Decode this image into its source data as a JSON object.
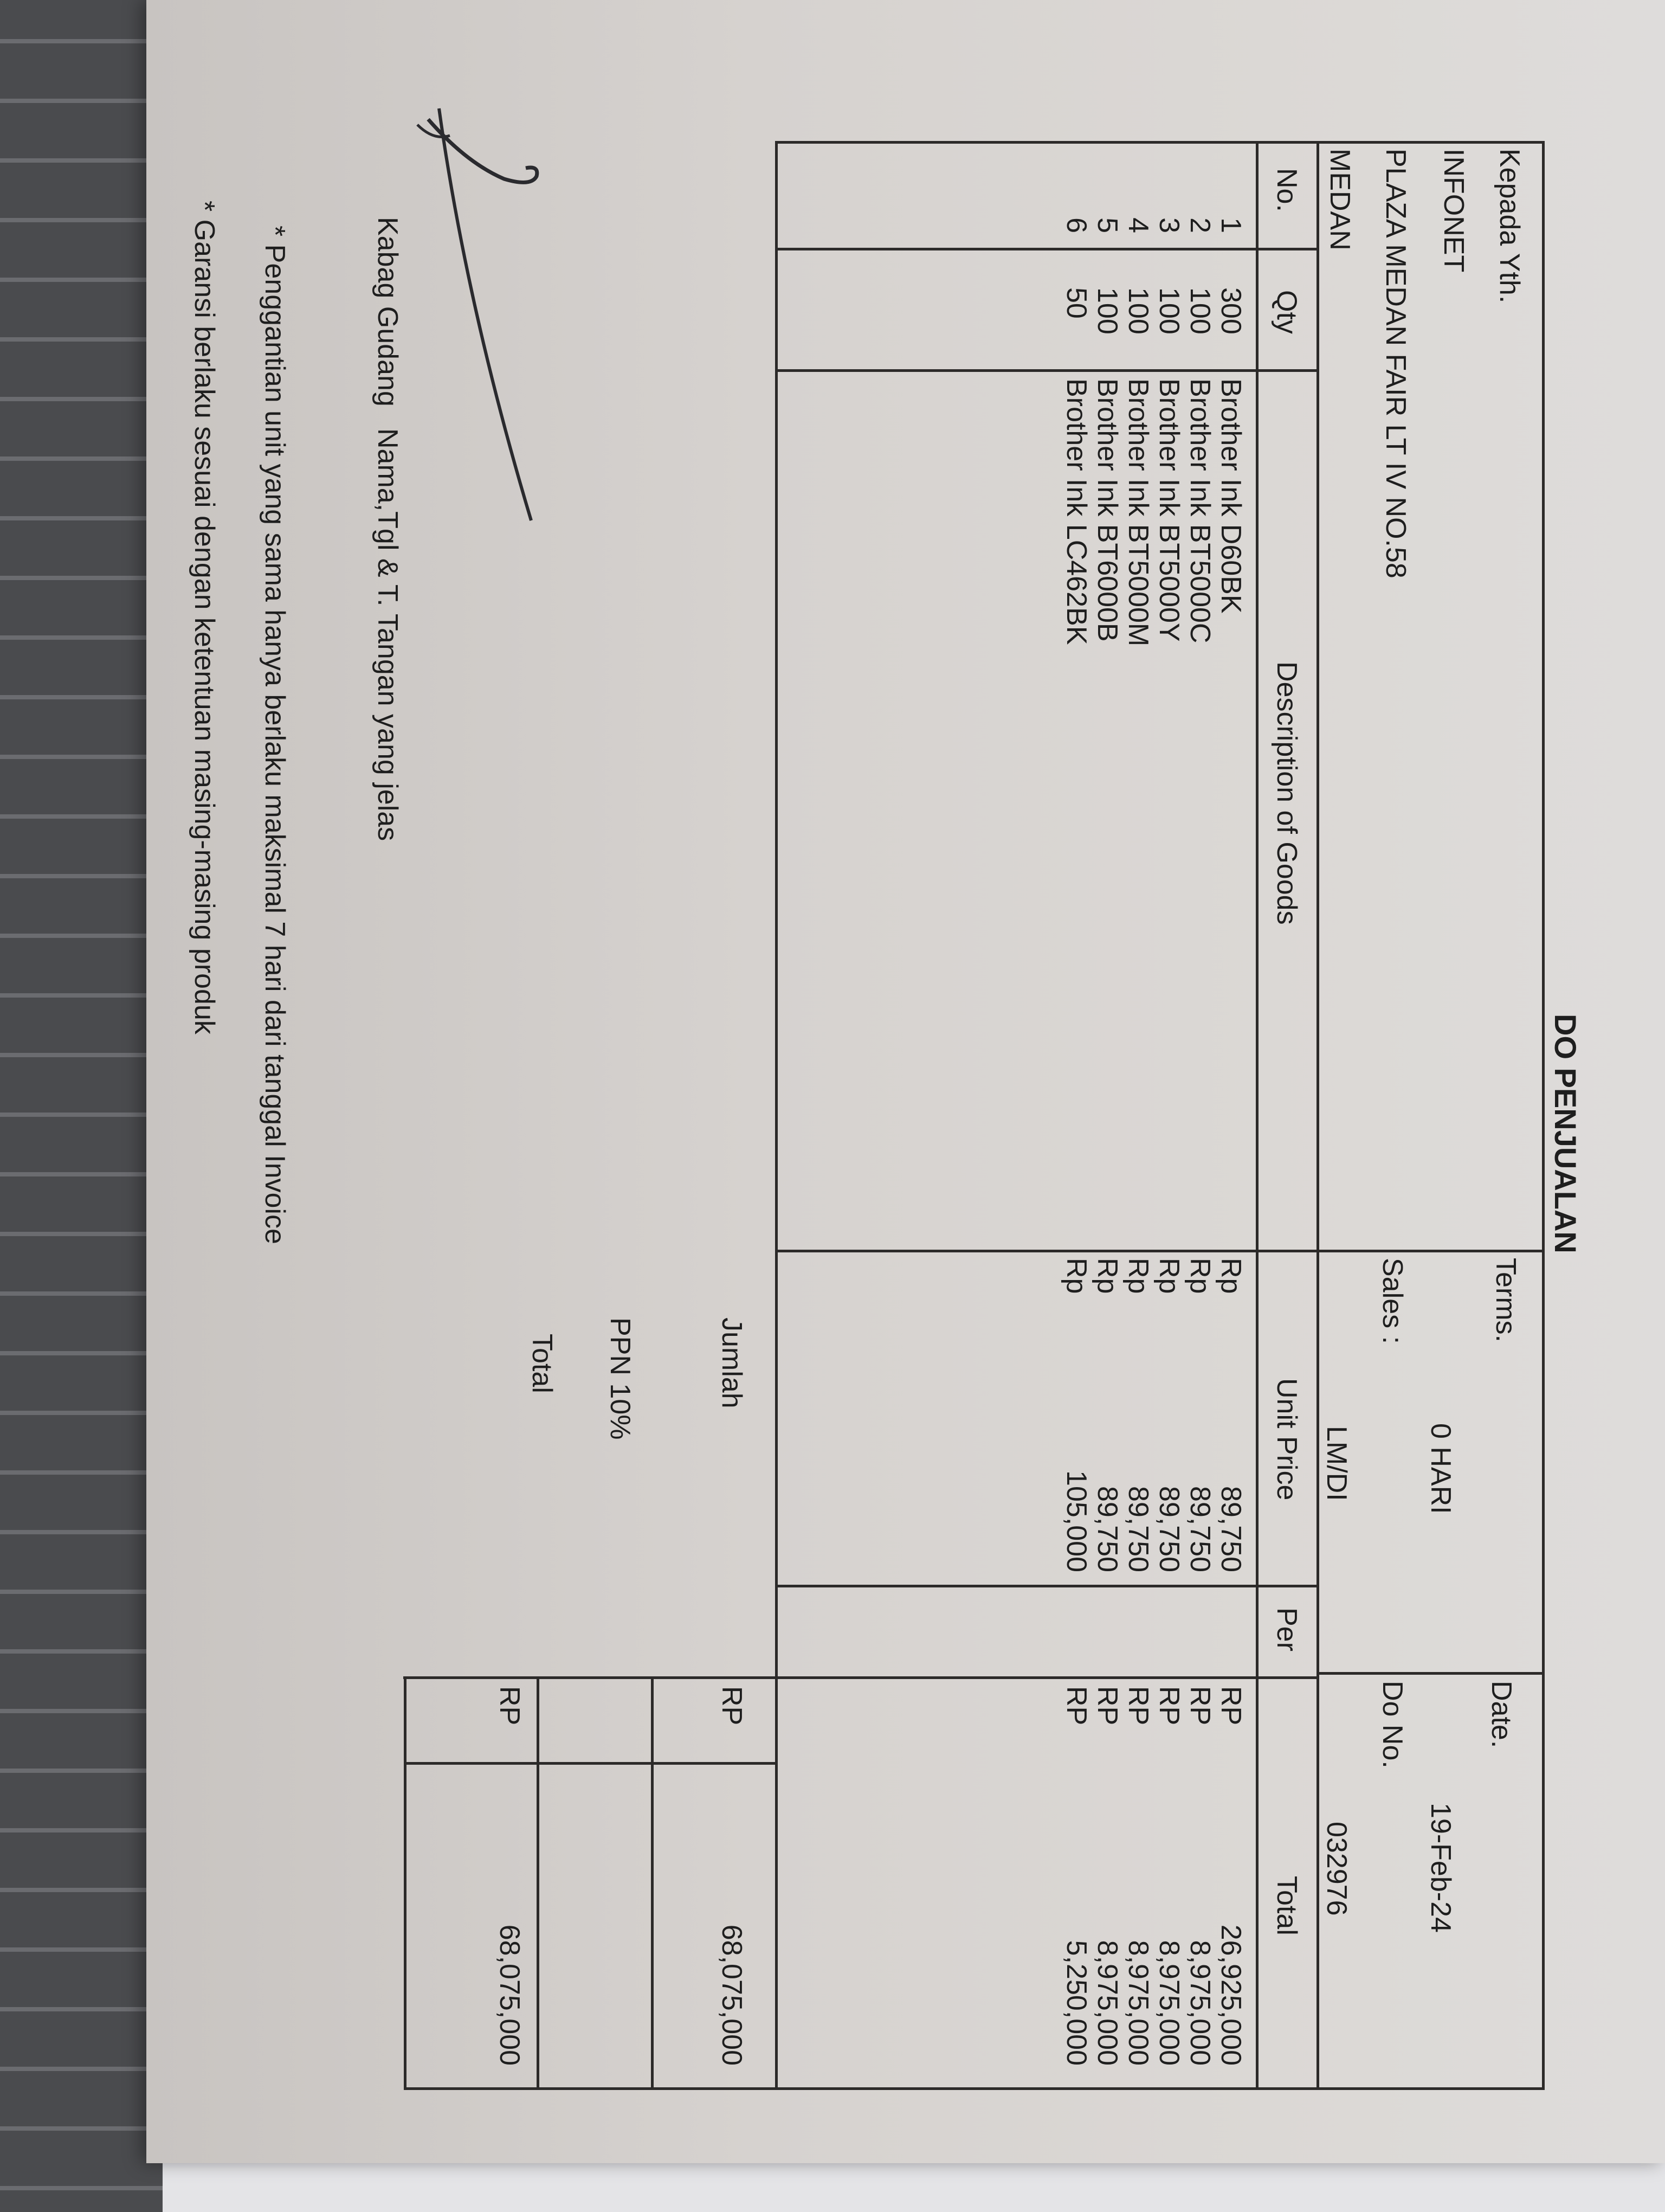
{
  "title": "DO PENJUALAN",
  "recipient": {
    "label": "Kepada Yth.",
    "name": "INFONET",
    "address": "PLAZA MEDAN FAIR LT IV NO.58",
    "city": "MEDAN"
  },
  "meta": {
    "terms_label": "Terms.",
    "terms_value": "0 HARI",
    "sales_label": "Sales :",
    "sales_value": "LM/DI",
    "date_label": "Date.",
    "date_value": "19-Feb-24",
    "do_label": "Do No.",
    "do_value": "032976"
  },
  "table": {
    "headers": [
      "No.",
      "Qty",
      "Description of Goods",
      "Unit Price",
      "Per",
      "Total"
    ],
    "rows": [
      {
        "no": "1",
        "qty": "300",
        "desc": "Brother Ink D60BK",
        "cur": "Rp",
        "price": "89,750",
        "cur2": "RP",
        "total": "26,925,000"
      },
      {
        "no": "2",
        "qty": "100",
        "desc": "Brother Ink BT5000C",
        "cur": "Rp",
        "price": "89,750",
        "cur2": "RP",
        "total": "8,975,000"
      },
      {
        "no": "3",
        "qty": "100",
        "desc": "Brother Ink BT5000Y",
        "cur": "Rp",
        "price": "89,750",
        "cur2": "RP",
        "total": "8,975,000"
      },
      {
        "no": "4",
        "qty": "100",
        "desc": "Brother Ink BT5000M",
        "cur": "Rp",
        "price": "89,750",
        "cur2": "RP",
        "total": "8,975,000"
      },
      {
        "no": "5",
        "qty": "100",
        "desc": "Brother Ink BT6000B",
        "cur": "Rp",
        "price": "89,750",
        "cur2": "RP",
        "total": "8,975,000"
      },
      {
        "no": "6",
        "qty": "50",
        "desc": "Brother Ink LC462BK",
        "cur": "Rp",
        "price": "105,000",
        "cur2": "RP",
        "total": "5,250,000"
      }
    ]
  },
  "summary": {
    "jumlah_label": "Jumlah",
    "jumlah_cur": "RP",
    "jumlah_value": "68,075,000",
    "ppn_label": "PPN 10%",
    "total_label": "Total",
    "total_cur": "RP",
    "total_value": "68,075,000"
  },
  "signature": {
    "role": "Kabag Gudang",
    "instruction": "Nama,Tgl & T. Tangan yang jelas"
  },
  "notes": [
    "* Penggantian unit yang sama hanya berlaku maksimal 7 hari dari tanggal Invoice",
    "* Garansi berlaku sesuai dengan ketentuan masing-masing produk"
  ]
}
